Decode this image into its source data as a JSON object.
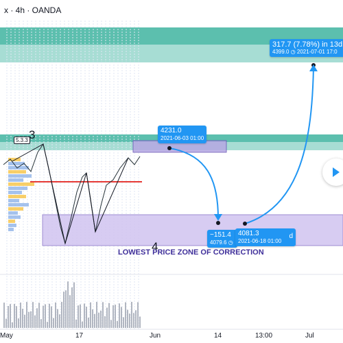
{
  "header": {
    "symbol_info": "x · 4h · OANDA"
  },
  "annotations": {
    "wave_top": "3",
    "wave_bottom": "4",
    "tag": "5.3.3",
    "zone_label": "LOWEST PRICE ZONE OF CORRECTION"
  },
  "labels": {
    "top_target": {
      "line1": "317.7 (7.78%) in 13d",
      "line2": "4399.0 ◷ 2021-07-01 17:0"
    },
    "start_point": {
      "line1": "4231.0",
      "line2": "2021-06-03 01:00"
    },
    "drop": {
      "line1": "−151.4",
      "line2": "4079.6 ◷"
    },
    "low_point": {
      "line1": "4081.3",
      "line2": "2021-06-18 01:00"
    },
    "low_suffix": "d"
  },
  "x_axis": [
    "May",
    "17",
    "Jun",
    "14",
    "13:00",
    "Jul"
  ],
  "colors": {
    "teal_zone": "#5cbfae",
    "purple_zone": "#d1c4f0",
    "arrow": "#2196f3",
    "red_line": "#e53935"
  },
  "icons": {
    "nav": "chevron-right-icon"
  }
}
